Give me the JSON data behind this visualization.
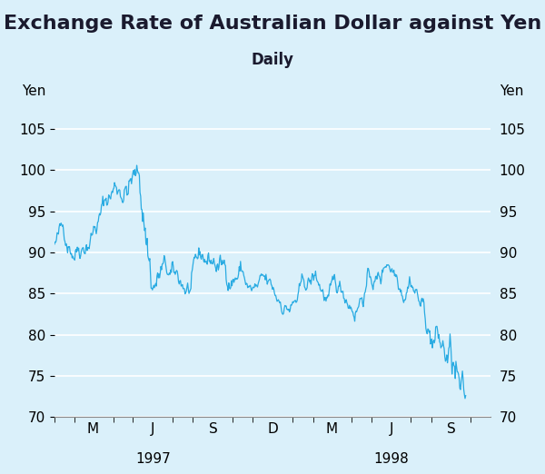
{
  "title": "Exchange Rate of Australian Dollar against Yen",
  "subtitle": "Daily",
  "ylabel_left": "Yen",
  "ylabel_right": "Yen",
  "ylim": [
    70,
    108
  ],
  "yticks": [
    70,
    75,
    80,
    85,
    90,
    95,
    100,
    105
  ],
  "line_color": "#29ABE2",
  "background_color": "#DAF0FA",
  "grid_color": "#FFFFFF",
  "title_fontsize": 16,
  "subtitle_fontsize": 12
}
